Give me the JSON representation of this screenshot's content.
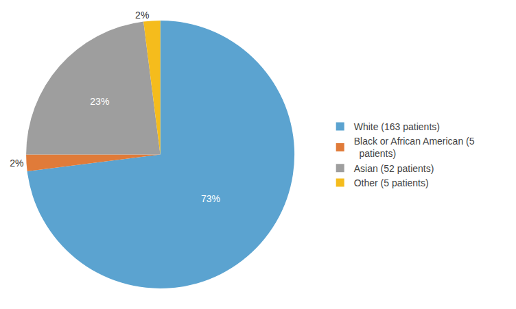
{
  "chart_data": {
    "type": "pie",
    "categories": [
      "White (163 patients)",
      "Black or African American (5\n  patients)",
      "Asian (52 patients)",
      "Other (5 patients)"
    ],
    "values": [
      73,
      2,
      23,
      2
    ],
    "value_labels": [
      "73%",
      "2%",
      "23%",
      "2%"
    ],
    "colors": [
      "#5BA3D0",
      "#E07B39",
      "#9E9E9E",
      "#F5BC1C"
    ],
    "data_labels": true,
    "legend": "right"
  }
}
